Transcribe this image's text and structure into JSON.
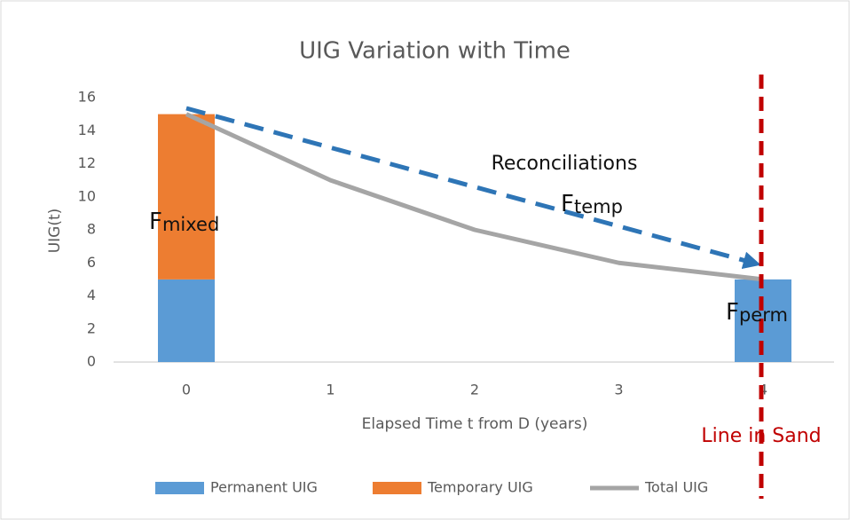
{
  "chart_data": {
    "type": "bar",
    "title": "UIG Variation with Time",
    "x_label": "Elapsed Time t from D (years)",
    "y_label": "UIG(t)",
    "categories": [
      "0",
      "1",
      "2",
      "3",
      "4"
    ],
    "series": [
      {
        "name": "Permanent UIG",
        "type": "bar",
        "color": "#5b9bd5",
        "values": [
          5,
          null,
          null,
          null,
          5
        ]
      },
      {
        "name": "Temporary UIG",
        "type": "bar",
        "color": "#ed7d31",
        "values": [
          10,
          null,
          null,
          null,
          null
        ]
      },
      {
        "name": "Total UIG",
        "type": "line",
        "color": "#a5a5a5",
        "values": [
          15,
          11,
          8,
          6,
          5
        ]
      }
    ],
    "ylim": [
      0,
      16
    ],
    "yticks": [
      0,
      2,
      4,
      6,
      8,
      10,
      12,
      14,
      16
    ],
    "grid": false,
    "legend": "bottom",
    "annotations": [
      {
        "text": "Reconciliations"
      },
      {
        "text": "F",
        "sub": "temp"
      },
      {
        "text": "F",
        "sub": "mixed"
      },
      {
        "text": "F",
        "sub": "perm"
      },
      {
        "text": "Line in Sand",
        "color": "#c00000"
      }
    ]
  }
}
